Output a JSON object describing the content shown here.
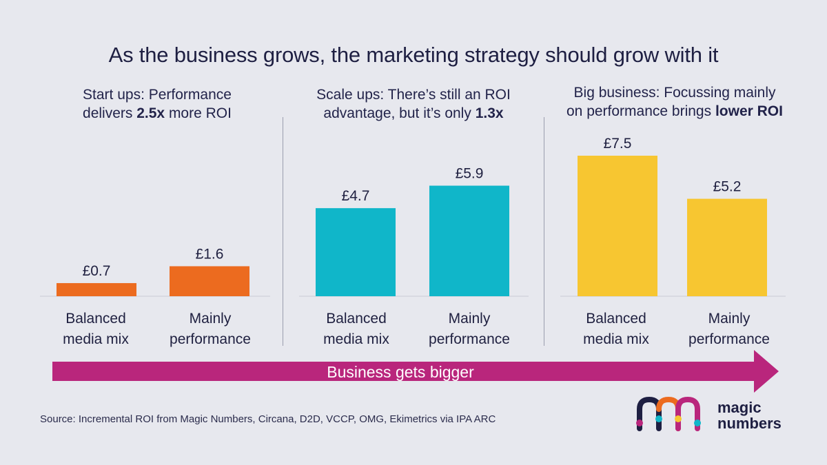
{
  "title": "As the business grows, the marketing strategy should grow with it",
  "panels": [
    {
      "pre": "Start ups: Performance",
      "line2_pre": "delivers ",
      "bold": "2.5x",
      "line2_post": " more ROI"
    },
    {
      "pre": "Scale ups: There’s still an ROI",
      "line2_pre": "advantage, but it’s only ",
      "bold": "1.3x",
      "line2_post": ""
    },
    {
      "pre": "Big business: Focussing mainly",
      "line2_pre": "on performance brings ",
      "bold": "lower ROI",
      "line2_post": ""
    }
  ],
  "categories": [
    {
      "line1": "Balanced",
      "line2": "media mix"
    },
    {
      "line1": "Mainly",
      "line2": "performance"
    }
  ],
  "arrow_label": "Business gets bigger",
  "source": "Source: Incremental ROI from Magic Numbers, Circana, D2D, VCCP, OMG, Ekimetrics via IPA ARC",
  "logo": {
    "line1": "magic",
    "line2": "numbers"
  },
  "colors": {
    "startups": "#ec6b1f",
    "scaleups": "#10b6c9",
    "bigbusiness": "#f7c631",
    "arrow": "#b9267c",
    "background": "#e7e8ee"
  },
  "chart_data": [
    {
      "type": "bar",
      "categories": [
        "Balanced media mix",
        "Mainly performance"
      ],
      "values": [
        0.7,
        1.6
      ],
      "value_labels": [
        "£0.7",
        "£1.6"
      ],
      "color": "#ec6b1f"
    },
    {
      "type": "bar",
      "categories": [
        "Balanced media mix",
        "Mainly performance"
      ],
      "values": [
        4.7,
        5.9
      ],
      "value_labels": [
        "£4.7",
        "£5.9"
      ],
      "color": "#10b6c9"
    },
    {
      "type": "bar",
      "categories": [
        "Balanced media mix",
        "Mainly performance"
      ],
      "values": [
        7.5,
        5.2
      ],
      "value_labels": [
        "£7.5",
        "£5.2"
      ],
      "color": "#f7c631"
    }
  ]
}
